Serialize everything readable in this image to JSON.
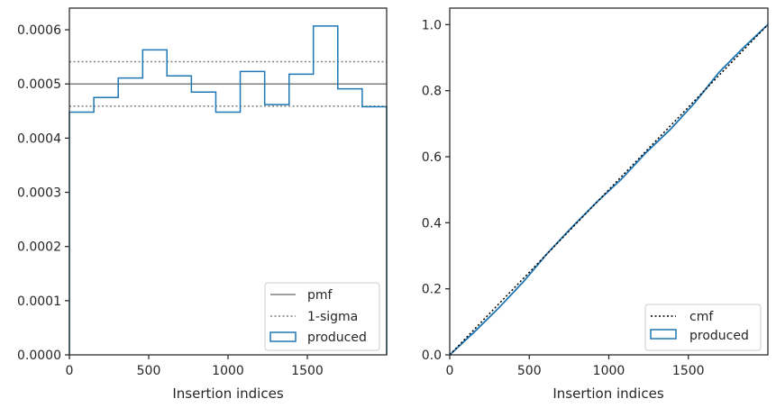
{
  "chart_data": [
    {
      "type": "histogram",
      "xlabel": "Insertion indices",
      "ylabel": "",
      "xlim": [
        0,
        2000
      ],
      "ylim": [
        0,
        0.00064
      ],
      "xticks": [
        0,
        500,
        1000,
        1500
      ],
      "yticks": [
        0.0,
        0.0001,
        0.0002,
        0.0003,
        0.0004,
        0.0005,
        0.0006
      ],
      "ytick_labels": [
        "0.0000",
        "0.0001",
        "0.0002",
        "0.0003",
        "0.0004",
        "0.0005",
        "0.0006"
      ],
      "bin_edges": [
        0,
        154,
        308,
        462,
        615,
        769,
        923,
        1077,
        1231,
        1385,
        1538,
        1692,
        1846,
        2000
      ],
      "values": [
        0.000448,
        0.000475,
        0.000511,
        0.000563,
        0.000515,
        0.000485,
        0.000448,
        0.000523,
        0.000462,
        0.000518,
        0.000607,
        0.000491,
        0.000458
      ],
      "pmf": 0.0005,
      "sigma_lines": [
        0.000541,
        0.000459
      ],
      "grid": false,
      "legend_position": "lower right",
      "legend": [
        {
          "label": "pmf",
          "style": "solid",
          "color": "#808080"
        },
        {
          "label": "1-sigma",
          "style": "dotted",
          "color": "#808080"
        },
        {
          "label": "produced",
          "style": "step",
          "color": "#1f77b4"
        }
      ]
    },
    {
      "type": "line",
      "xlabel": "Insertion indices",
      "ylabel": "",
      "xlim": [
        0,
        2000
      ],
      "ylim": [
        0,
        1.05
      ],
      "xticks": [
        0,
        500,
        1000,
        1500
      ],
      "yticks": [
        0.0,
        0.2,
        0.4,
        0.6,
        0.8,
        1.0
      ],
      "ytick_labels": [
        "0.0",
        "0.2",
        "0.4",
        "0.6",
        "0.8",
        "1.0"
      ],
      "cmf": {
        "x": [
          0,
          2000
        ],
        "y": [
          0,
          1
        ]
      },
      "produced": {
        "x": [
          0,
          154,
          308,
          462,
          615,
          769,
          923,
          1077,
          1231,
          1385,
          1538,
          1692,
          1846,
          2000
        ],
        "y": [
          0,
          0.069,
          0.142,
          0.221,
          0.308,
          0.387,
          0.462,
          0.531,
          0.611,
          0.682,
          0.762,
          0.855,
          0.93,
          1.0
        ]
      },
      "grid": false,
      "legend_position": "lower right",
      "legend": [
        {
          "label": "cmf",
          "style": "dotted",
          "color": "#000000"
        },
        {
          "label": "produced",
          "style": "step",
          "color": "#1f77b4"
        }
      ]
    }
  ]
}
